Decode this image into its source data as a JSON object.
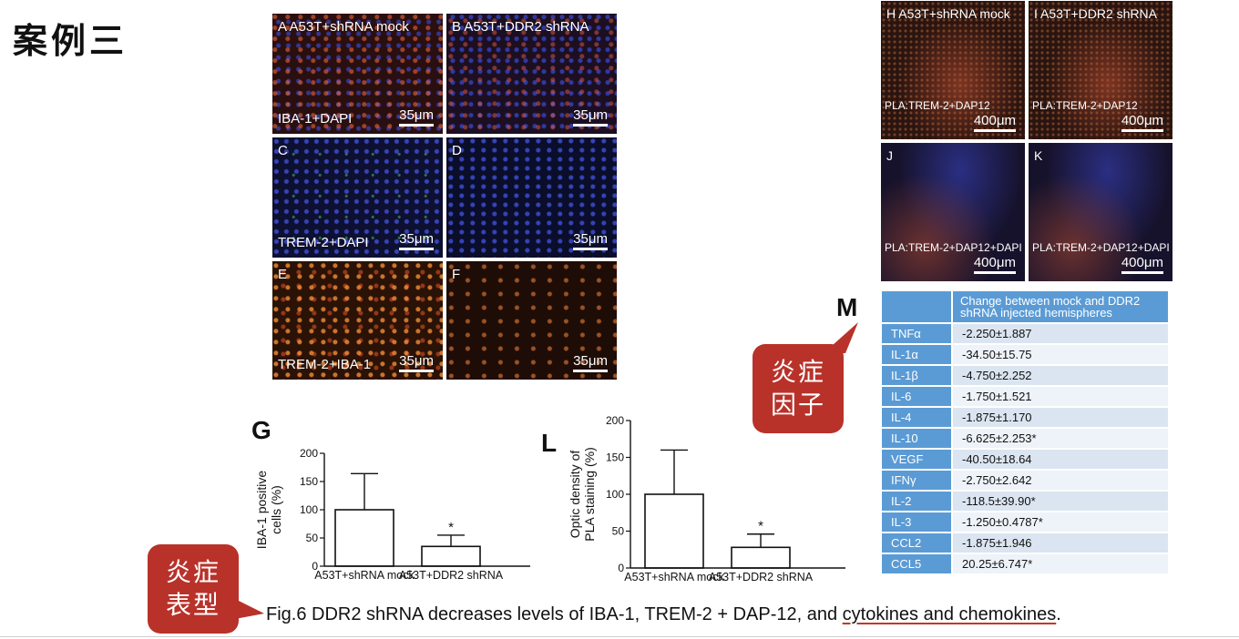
{
  "slide": {
    "title": "案例三"
  },
  "micro_panels": [
    {
      "id": "A",
      "label": "A   A53T+shRNA mock",
      "stain": "IBA-1+DAPI",
      "scale": "35μm"
    },
    {
      "id": "B",
      "label": "B   A53T+DDR2 shRNA",
      "stain": "",
      "scale": "35μm"
    },
    {
      "id": "C",
      "label": "C",
      "stain": "TREM-2+DAPI",
      "scale": "35μm"
    },
    {
      "id": "D",
      "label": "D",
      "stain": "",
      "scale": "35μm"
    },
    {
      "id": "E",
      "label": "E",
      "stain": "TREM-2+IBA-1",
      "scale": "35μm"
    },
    {
      "id": "F",
      "label": "F",
      "stain": "",
      "scale": "35μm"
    }
  ],
  "pla_panels": [
    {
      "id": "H",
      "label": "H   A53T+shRNA mock",
      "stain": "PLA:TREM-2+DAP12",
      "scale": "400μm"
    },
    {
      "id": "I",
      "label": "I   A53T+DDR2 shRNA",
      "stain": "PLA:TREM-2+DAP12",
      "scale": "400μm"
    },
    {
      "id": "J",
      "label": "J",
      "stain": "PLA:TREM-2+DAP12+DAPI",
      "scale": "400μm"
    },
    {
      "id": "K",
      "label": "K",
      "stain": "PLA:TREM-2+DAP12+DAPI",
      "scale": "400μm"
    }
  ],
  "chart_data": [
    {
      "panel": "G",
      "type": "bar",
      "categories": [
        "A53T+shRNA mock",
        "A53T+DDR2 shRNA"
      ],
      "values": [
        100,
        35
      ],
      "errors": [
        64,
        20
      ],
      "significance": [
        "",
        "*"
      ],
      "ylabel": "IBA-1 positive cells (%)",
      "ylim": [
        0,
        200
      ],
      "yticks": [
        "0",
        "50",
        "100",
        "150",
        "200"
      ]
    },
    {
      "panel": "L",
      "type": "bar",
      "categories": [
        "A53T+shRNA mock",
        "A53T+DDR2 shRNA"
      ],
      "values": [
        100,
        28
      ],
      "errors": [
        60,
        18
      ],
      "significance": [
        "",
        "*"
      ],
      "ylabel": "Optic density of PLA staining (%)",
      "ylim": [
        0,
        200
      ],
      "yticks": [
        "0",
        "50",
        "100",
        "150",
        "200"
      ]
    }
  ],
  "table": {
    "panel": "M",
    "header": "Change between mock and DDR2 shRNA injected hemispheres",
    "rows": [
      {
        "name": "TNFα",
        "value": "-2.250±1.887"
      },
      {
        "name": "IL-1α",
        "value": "-34.50±15.75"
      },
      {
        "name": "IL-1β",
        "value": "-4.750±2.252"
      },
      {
        "name": "IL-6",
        "value": "-1.750±1.521"
      },
      {
        "name": "IL-4",
        "value": "-1.875±1.170"
      },
      {
        "name": "IL-10",
        "value": "-6.625±2.253*"
      },
      {
        "name": "VEGF",
        "value": "-40.50±18.64"
      },
      {
        "name": "IFNγ",
        "value": "-2.750±2.642"
      },
      {
        "name": "IL-2",
        "value": "-118.5±39.90*"
      },
      {
        "name": "IL-3",
        "value": "-1.250±0.4787*"
      },
      {
        "name": "CCL2",
        "value": "-1.875±1.946"
      },
      {
        "name": "CCL5",
        "value": "20.25±6.747*"
      }
    ]
  },
  "callouts": {
    "cytokines": [
      "炎症",
      "因子"
    ],
    "phenotype": [
      "炎症",
      "表型"
    ]
  },
  "caption": {
    "main": "Fig.6 DDR2 shRNA decreases levels of IBA-1, TREM-2 + DAP-12, and ",
    "underlined": "cytokines and chemokines",
    "end": "."
  },
  "colors": {
    "callout": "#b8322a",
    "table_header": "#5b9bd5",
    "caption_underline": "#c0392b"
  }
}
